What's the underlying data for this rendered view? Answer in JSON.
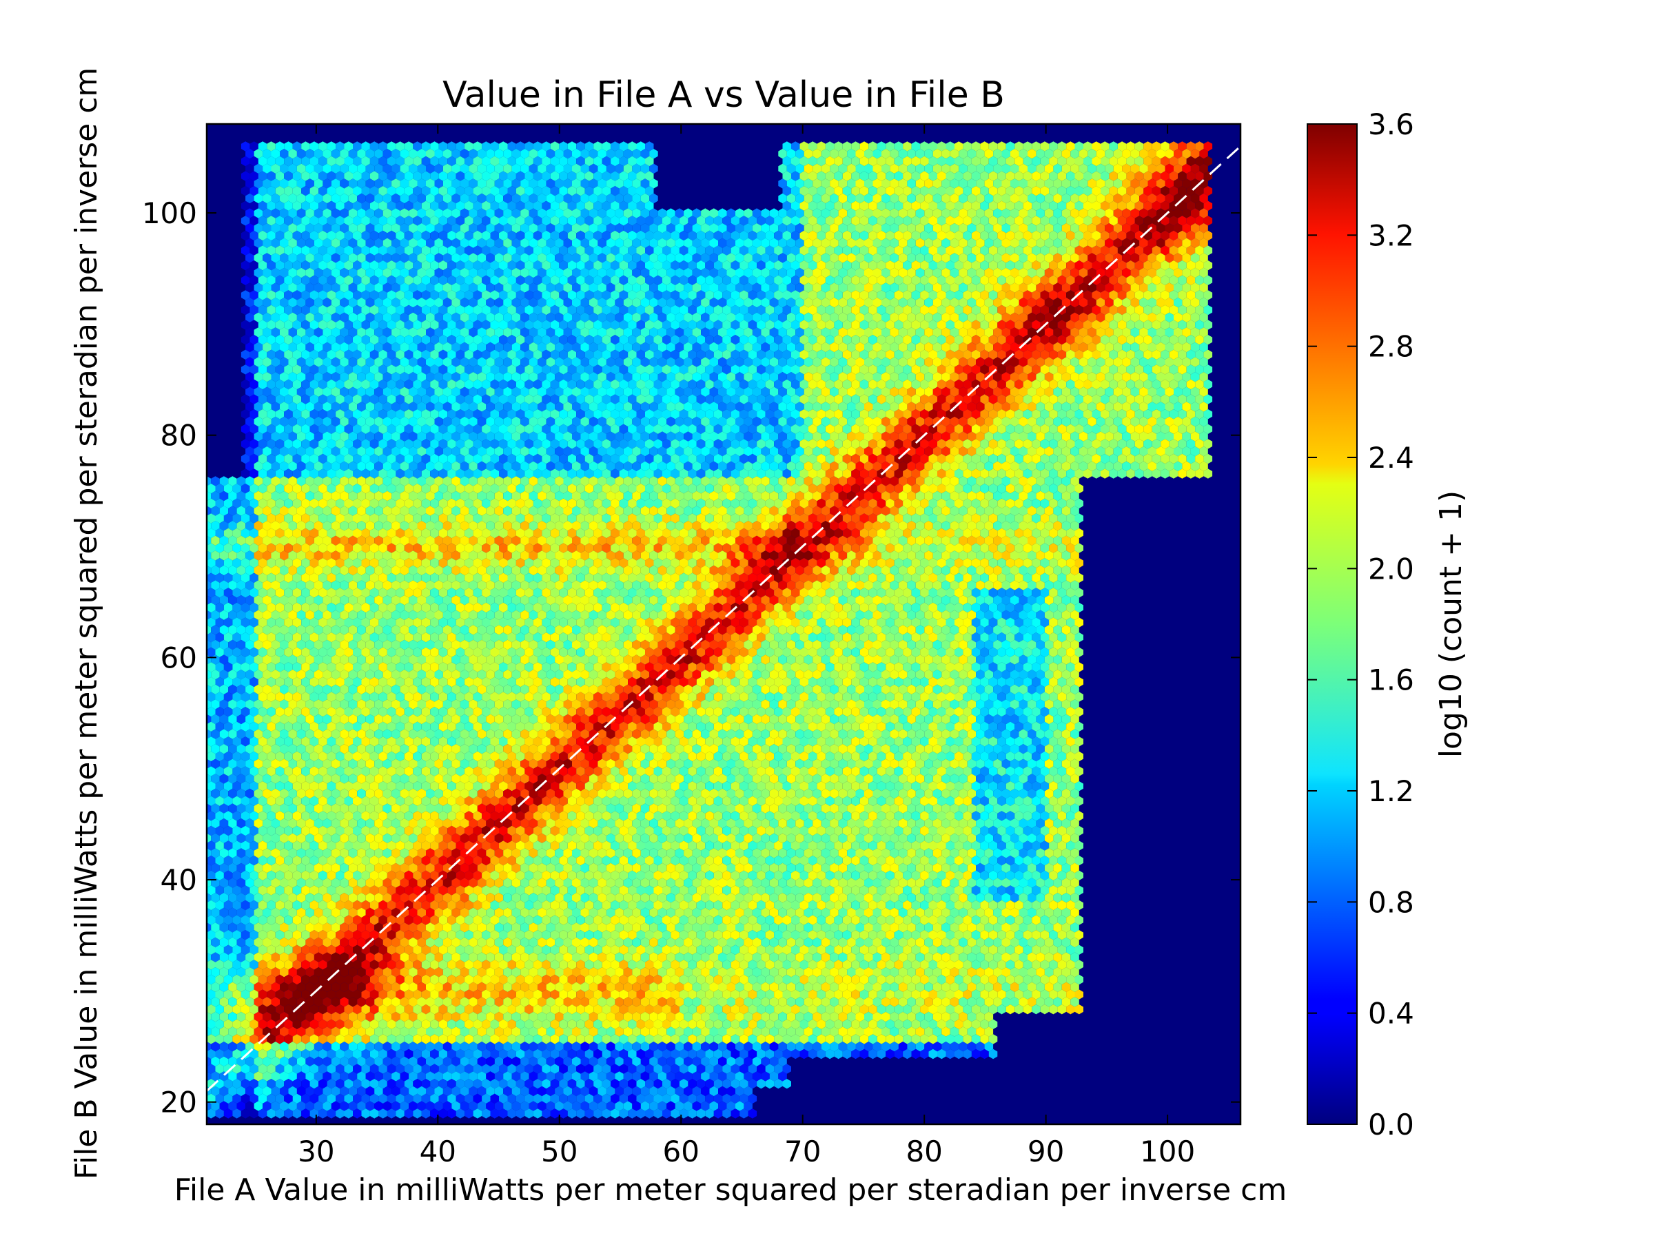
{
  "chart_data": {
    "type": "heatmap",
    "subtype": "hexbin",
    "title": "Value in File A vs Value in File B",
    "xlabel": "File A Value in milliWatts per meter squared per steradian per inverse cm",
    "ylabel": "File B Value in milliWatts per meter squared per steradian per inverse cm",
    "xlim": [
      21,
      106
    ],
    "ylim": [
      18,
      108
    ],
    "x_ticks": [
      30,
      40,
      50,
      60,
      70,
      80,
      90,
      100
    ],
    "y_ticks": [
      20,
      40,
      60,
      80,
      100
    ],
    "colormap": "jet",
    "colorbar": {
      "label": "log10 (count + 1)",
      "range": [
        0.0,
        3.6
      ],
      "ticks": [
        "0.0",
        "0.4",
        "0.8",
        "1.2",
        "1.6",
        "2.0",
        "2.4",
        "2.8",
        "3.2",
        "3.6"
      ]
    },
    "reference_line": {
      "style": "dashed",
      "color": "#ffffff",
      "x": [
        21,
        106
      ],
      "y": [
        21,
        106
      ]
    },
    "background_color": "#00007f",
    "grid": false,
    "density_regions": {
      "diagonal_ridge": {
        "x": [
          30,
          104
        ],
        "y": [
          30,
          104
        ],
        "peak_log_count": 3.6
      },
      "populated_area": "x 21-102, y 18-106; empty lower-right region beyond x≈92 for y<75"
    }
  }
}
